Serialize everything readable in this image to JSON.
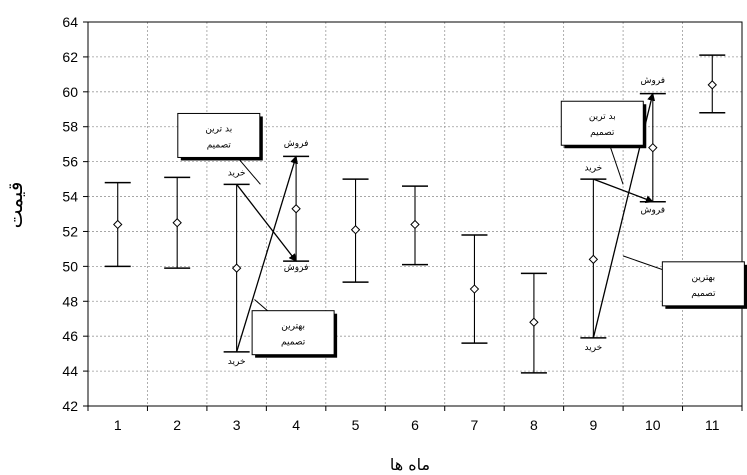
{
  "chart_data": {
    "type": "errorbar",
    "xlabel": "ماه ها",
    "ylabel": "قیمت",
    "xlim": [
      0.5,
      11.5
    ],
    "ylim": [
      42,
      64
    ],
    "xticks": [
      1,
      2,
      3,
      4,
      5,
      6,
      7,
      8,
      9,
      10,
      11
    ],
    "yticks": [
      42,
      44,
      46,
      48,
      50,
      52,
      54,
      56,
      58,
      60,
      62,
      64
    ],
    "grid": true,
    "points": [
      {
        "x": 1,
        "mean": 52.4,
        "low": 50.0,
        "high": 54.8
      },
      {
        "x": 2,
        "mean": 52.5,
        "low": 49.9,
        "high": 55.1
      },
      {
        "x": 3,
        "mean": 49.9,
        "low": 45.1,
        "high": 54.7
      },
      {
        "x": 4,
        "mean": 53.3,
        "low": 50.3,
        "high": 56.3
      },
      {
        "x": 5,
        "mean": 52.1,
        "low": 49.1,
        "high": 55.0
      },
      {
        "x": 6,
        "mean": 52.4,
        "low": 50.1,
        "high": 54.6
      },
      {
        "x": 7,
        "mean": 48.7,
        "low": 45.6,
        "high": 51.8
      },
      {
        "x": 8,
        "mean": 46.8,
        "low": 43.9,
        "high": 49.6
      },
      {
        "x": 9,
        "mean": 50.4,
        "low": 45.9,
        "high": 55.0
      },
      {
        "x": 10,
        "mean": 56.8,
        "low": 53.7,
        "high": 59.9
      },
      {
        "x": 11,
        "mean": 60.4,
        "low": 58.8,
        "high": 62.1
      }
    ],
    "annotations": {
      "labels": [
        {
          "text": "خرید",
          "x": 3,
          "y": 55.2
        },
        {
          "text": "خرید",
          "x": 3,
          "y": 44.4
        },
        {
          "text": "فروش",
          "x": 4,
          "y": 56.9
        },
        {
          "text": "فروش",
          "x": 4,
          "y": 49.8
        },
        {
          "text": "خرید",
          "x": 9,
          "y": 55.5
        },
        {
          "text": "خرید",
          "x": 9,
          "y": 45.2
        },
        {
          "text": "فروش",
          "x": 10,
          "y": 60.5
        },
        {
          "text": "فروش",
          "x": 10,
          "y": 53.1
        }
      ],
      "arrows": [
        {
          "from": [
            3,
            54.7
          ],
          "to": [
            4,
            50.3
          ]
        },
        {
          "from": [
            3,
            45.1
          ],
          "to": [
            4,
            56.3
          ]
        },
        {
          "from": [
            9,
            55.0
          ],
          "to": [
            10,
            53.7
          ]
        },
        {
          "from": [
            9,
            45.9
          ],
          "to": [
            10,
            59.9
          ]
        }
      ],
      "boxes": [
        {
          "line1": "بد ترین",
          "line2": "تصمیم",
          "x": 2.7,
          "y": 57.5,
          "pointer": [
            3.4,
            54.7
          ]
        },
        {
          "line1": "بهترین",
          "line2": "تصمیم",
          "x": 3.95,
          "y": 46.2,
          "pointer": [
            3.3,
            48.1
          ]
        },
        {
          "line1": "بد ترین",
          "line2": "تصمیم",
          "x": 9.15,
          "y": 58.2,
          "pointer": [
            9.5,
            54.7
          ]
        },
        {
          "line1": "بهترین",
          "line2": "تصمیم",
          "x": 10.85,
          "y": 49.0,
          "pointer": [
            9.5,
            50.6
          ]
        }
      ]
    }
  }
}
